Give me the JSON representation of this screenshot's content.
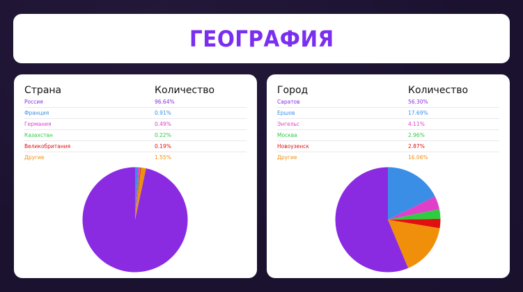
{
  "header": {
    "title": "ГЕОГРАФИЯ",
    "title_color": "#7a2ff0"
  },
  "countries": {
    "col_name": "Страна",
    "col_value": "Количество",
    "rows": [
      {
        "name": "Россия",
        "value": "96.64%",
        "color": "#8a2be2"
      },
      {
        "name": "Франция",
        "value": "0.91%",
        "color": "#3a8ee6"
      },
      {
        "name": "Германия",
        "value": "0.49%",
        "color": "#e040c8"
      },
      {
        "name": "Казахстан",
        "value": "0.22%",
        "color": "#2ecc40"
      },
      {
        "name": "Великобритания",
        "value": "0.19%",
        "color": "#e01010"
      },
      {
        "name": "Другие",
        "value": "1.55%",
        "color": "#f0900a"
      }
    ]
  },
  "cities": {
    "col_name": "Город",
    "col_value": "Количество",
    "rows": [
      {
        "name": "Саратов",
        "value": "56.30%",
        "color": "#8a2be2"
      },
      {
        "name": "Ершов",
        "value": "17.69%",
        "color": "#3a8ee6"
      },
      {
        "name": "Энгельс",
        "value": "4.11%",
        "color": "#e040c8"
      },
      {
        "name": "Москва",
        "value": "2.96%",
        "color": "#2ecc40"
      },
      {
        "name": "Новоузенск",
        "value": "2.87%",
        "color": "#e01010"
      },
      {
        "name": "Другие",
        "value": "16.06%",
        "color": "#f0900a"
      }
    ]
  },
  "chart_data": [
    {
      "type": "pie",
      "title": "Страна",
      "categories": [
        "Россия",
        "Франция",
        "Германия",
        "Казахстан",
        "Великобритания",
        "Другие"
      ],
      "values": [
        96.64,
        0.91,
        0.49,
        0.22,
        0.19,
        1.55
      ],
      "colors": [
        "#8a2be2",
        "#3a8ee6",
        "#e040c8",
        "#2ecc40",
        "#e01010",
        "#f0900a"
      ],
      "legend": "table-above"
    },
    {
      "type": "pie",
      "title": "Город",
      "categories": [
        "Саратов",
        "Ершов",
        "Энгельс",
        "Москва",
        "Новоузенск",
        "Другие"
      ],
      "values": [
        56.3,
        17.69,
        4.11,
        2.96,
        2.87,
        16.06
      ],
      "colors": [
        "#8a2be2",
        "#3a8ee6",
        "#e040c8",
        "#2ecc40",
        "#e01010",
        "#f0900a"
      ],
      "legend": "table-above"
    }
  ]
}
